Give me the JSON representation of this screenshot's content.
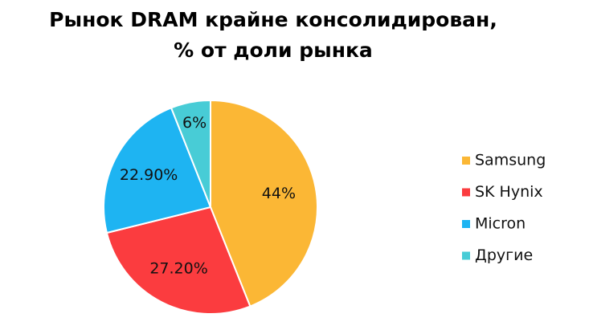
{
  "chart_data": {
    "type": "pie",
    "title": "Рынок DRAM крайне консолидирован,\n% от доли рынка",
    "categories": [
      "Samsung",
      "SK Hynix",
      "Micron",
      "Другие"
    ],
    "values": [
      44,
      27.2,
      22.9,
      6
    ],
    "value_labels": [
      "44%",
      "27.20%",
      "22.90%",
      "6%"
    ],
    "colors": [
      "#fbb735",
      "#fb3c3f",
      "#1eb4f2",
      "#48ccd6"
    ],
    "legend": "right"
  }
}
